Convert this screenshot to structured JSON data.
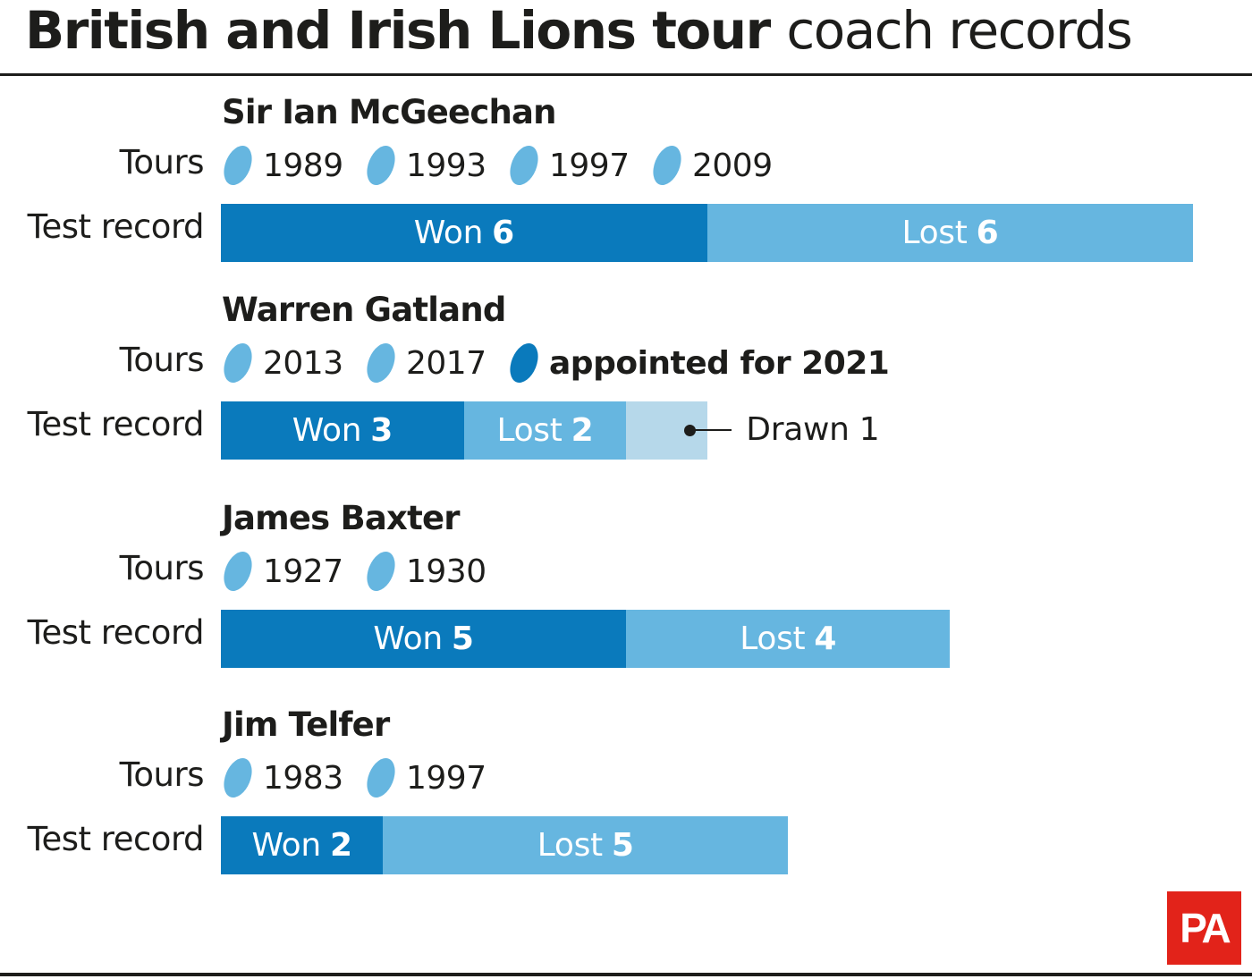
{
  "title": {
    "bold": "British and Irish Lions tour",
    "regular": "coach records"
  },
  "labels": {
    "tours": "Tours",
    "test_record": "Test record"
  },
  "colors": {
    "won": "#0a7abc",
    "lost": "#66b6e0",
    "drawn": "#b6d8ea",
    "ball_past": "#66b6e0",
    "ball_current": "#0a7abc"
  },
  "logo": "PA",
  "chart_data": {
    "type": "bar",
    "orientation": "horizontal-stacked",
    "title": "British and Irish Lions tour coach records",
    "series": [
      {
        "name": "Won",
        "values": [
          6,
          3,
          5,
          2
        ]
      },
      {
        "name": "Lost",
        "values": [
          6,
          2,
          4,
          5
        ]
      },
      {
        "name": "Drawn",
        "values": [
          0,
          1,
          0,
          0
        ]
      }
    ],
    "coaches": [
      {
        "name": "Sir Ian McGeechan",
        "tours": [
          {
            "label": "1989"
          },
          {
            "label": "1993"
          },
          {
            "label": "1997"
          },
          {
            "label": "2009"
          }
        ],
        "won": 6,
        "lost": 6,
        "drawn": 0
      },
      {
        "name": "Warren Gatland",
        "tours": [
          {
            "label": "2013"
          },
          {
            "label": "2017"
          },
          {
            "label": "appointed for 2021",
            "current": true
          }
        ],
        "won": 3,
        "lost": 2,
        "drawn": 1,
        "drawn_label": "Drawn 1"
      },
      {
        "name": "James Baxter",
        "tours": [
          {
            "label": "1927"
          },
          {
            "label": "1930"
          }
        ],
        "won": 5,
        "lost": 4,
        "drawn": 0
      },
      {
        "name": "Jim Telfer",
        "tours": [
          {
            "label": "1983"
          },
          {
            "label": "1997"
          }
        ],
        "won": 2,
        "lost": 5,
        "drawn": 0
      }
    ],
    "segment_labels": {
      "won": "Won",
      "lost": "Lost"
    }
  }
}
